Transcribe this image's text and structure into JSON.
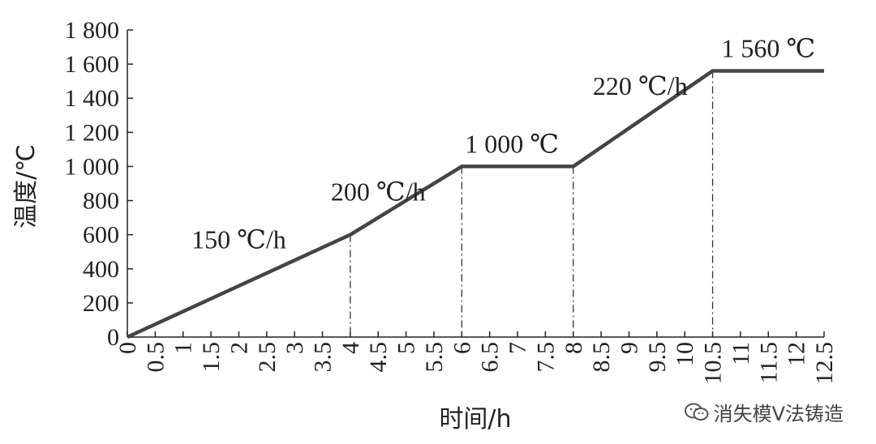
{
  "chart_data": {
    "type": "line",
    "xlabel": "时间/h",
    "ylabel": "温度/℃",
    "xlim": [
      0,
      12.5
    ],
    "ylim": [
      0,
      1800
    ],
    "x_ticks": [
      "0",
      "0.5",
      "1",
      "1.5",
      "2",
      "2.5",
      "3",
      "3.5",
      "4",
      "4.5",
      "5",
      "5.5",
      "6",
      "6.5",
      "7",
      "7.5",
      "8",
      "8.5",
      "9",
      "9.5",
      "10",
      "10.5",
      "11",
      "11.5",
      "12",
      "12.5"
    ],
    "y_ticks": [
      "0",
      "200",
      "400",
      "600",
      "800",
      "1 000",
      "1 200",
      "1 400",
      "1 600",
      "1 800"
    ],
    "series": [
      {
        "x": [
          0,
          4,
          6,
          8,
          10.5,
          12.5
        ],
        "y": [
          0,
          600,
          1000,
          1000,
          1560,
          1560
        ]
      }
    ],
    "markers_x": [
      4,
      6,
      8,
      10.5
    ],
    "annotations": [
      {
        "text": "150 ℃/h",
        "x": 2,
        "y": 520
      },
      {
        "text": "200 ℃/h",
        "x": 4.5,
        "y": 800
      },
      {
        "text": "1 000 ℃",
        "x": 6.9,
        "y": 1080
      },
      {
        "text": "220 ℃/h",
        "x": 9.2,
        "y": 1420
      },
      {
        "text": "1 560 ℃",
        "x": 11.5,
        "y": 1640
      }
    ],
    "colors": {
      "line": "#444444",
      "axis": "#222222",
      "guide": "#333333"
    }
  },
  "watermark": {
    "text": "消失模V法铸造",
    "icon": "wechat-icon"
  }
}
